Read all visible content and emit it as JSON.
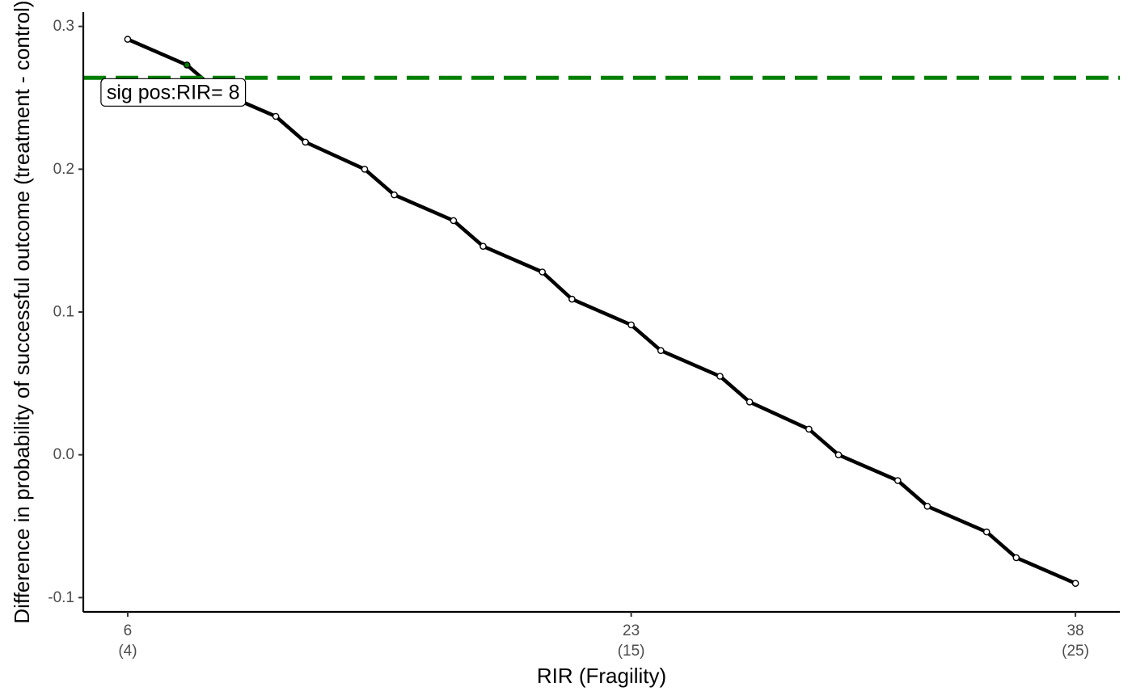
{
  "chart_data": {
    "type": "line",
    "xlabel": "RIR (Fragility)",
    "ylabel": "Difference in probability of successful outcome (treatment - control)",
    "xlim": [
      4.5,
      39.5
    ],
    "ylim": [
      -0.11,
      0.31
    ],
    "grid": false,
    "y_ticks": [
      {
        "value": -0.1,
        "label": "-0.1"
      },
      {
        "value": 0.0,
        "label": "0.0"
      },
      {
        "value": 0.1,
        "label": "0.1"
      },
      {
        "value": 0.2,
        "label": "0.2"
      },
      {
        "value": 0.3,
        "label": "0.3"
      }
    ],
    "x_ticks": [
      {
        "value": 6,
        "label": "6",
        "sublabel": "(4)"
      },
      {
        "value": 23,
        "label": "23",
        "sublabel": "(15)"
      },
      {
        "value": 38,
        "label": "38",
        "sublabel": "(25)"
      }
    ],
    "series": [
      {
        "color": "#000000",
        "x": [
          6,
          8,
          9,
          11,
          12,
          14,
          15,
          17,
          18,
          20,
          21,
          23,
          24,
          26,
          27,
          29,
          30,
          32,
          33,
          35,
          36,
          38
        ],
        "y": [
          0.291,
          0.273,
          0.255,
          0.237,
          0.219,
          0.2,
          0.182,
          0.164,
          0.146,
          0.128,
          0.109,
          0.091,
          0.073,
          0.055,
          0.037,
          0.018,
          0.0,
          -0.018,
          -0.036,
          -0.054,
          -0.072,
          -0.09
        ],
        "highlight_point": {
          "x": 8,
          "y": 0.273,
          "color": "#008000"
        }
      }
    ],
    "reference_line": {
      "y": 0.264,
      "color": "#008000",
      "style": "dashed"
    },
    "annotation": {
      "text": "sig pos:RIR= 8",
      "x": 8,
      "y": 0.264
    }
  }
}
